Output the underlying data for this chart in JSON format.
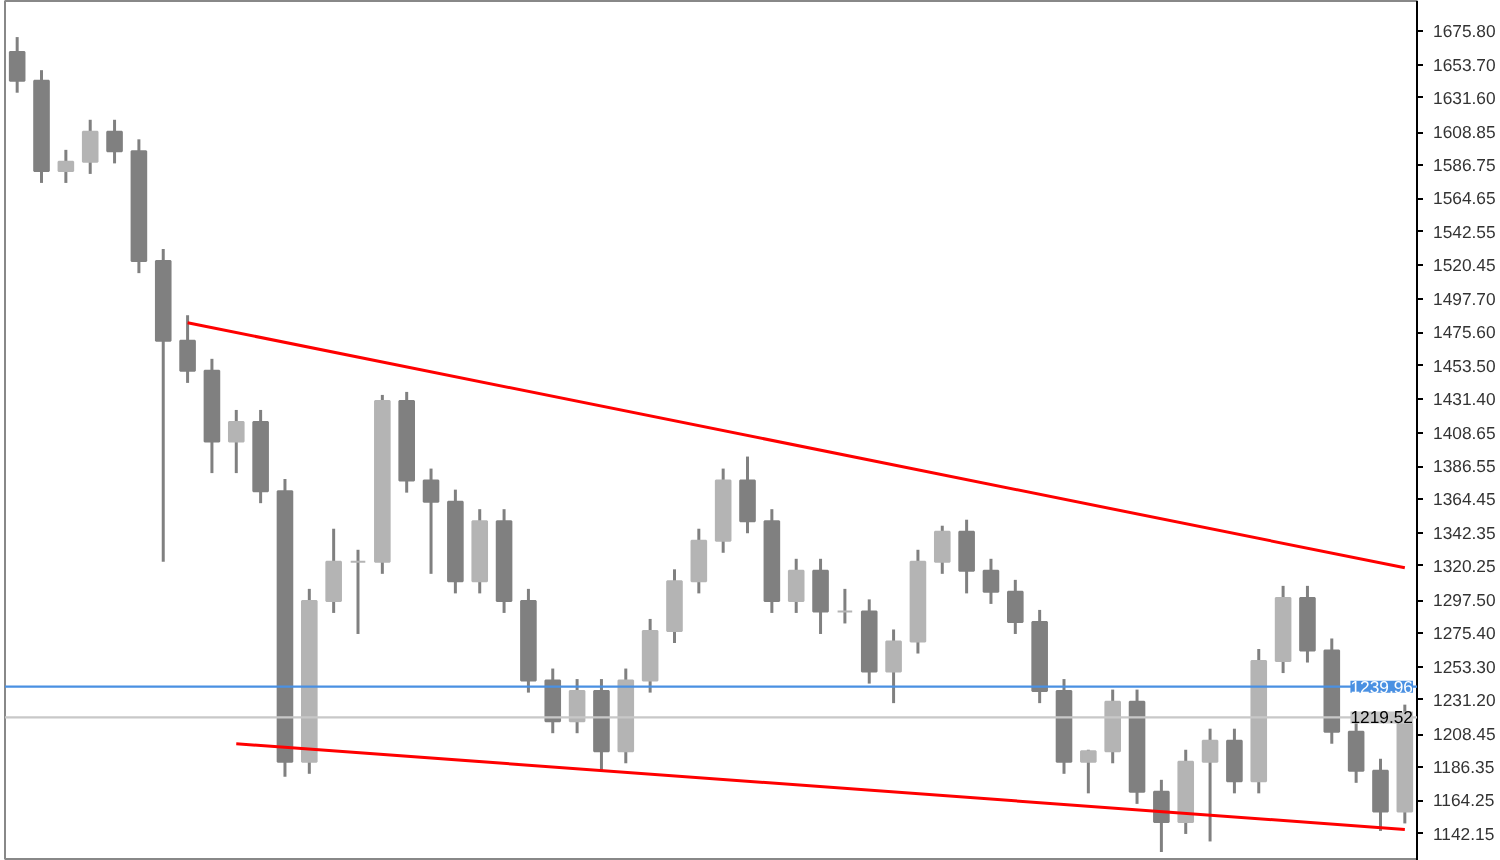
{
  "chart_data": {
    "type": "candlestick",
    "categories": [
      null,
      null,
      null,
      null,
      null,
      null,
      null,
      null,
      null,
      null,
      null,
      null,
      null,
      null,
      null,
      null,
      null,
      null,
      null,
      null,
      null,
      null,
      null,
      null,
      null,
      null,
      null,
      null,
      null,
      null,
      null,
      null,
      null,
      null,
      null,
      null,
      null,
      null,
      null,
      null,
      null,
      null,
      null,
      null,
      null,
      null,
      null,
      null,
      null,
      null,
      null,
      null,
      null,
      null,
      null,
      null,
      null,
      null
    ],
    "series": [
      {
        "color": "#808080",
        "colors": [
          "#808080",
          "#808080",
          "#b4b4b4",
          "#b4b4b4",
          "#808080",
          "#808080",
          "#808080",
          "#808080",
          "#808080",
          "#b4b4b4",
          "#808080",
          "#808080",
          "#b4b4b4",
          "#b4b4b4",
          "#b4b4b4",
          "#b4b4b4",
          "#808080",
          "#808080",
          "#808080",
          "#b4b4b4",
          "#808080",
          "#808080",
          "#808080",
          "#b4b4b4",
          "#808080",
          "#b4b4b4",
          "#b4b4b4",
          "#b4b4b4",
          "#b4b4b4",
          "#b4b4b4",
          "#808080",
          "#808080",
          "#b4b4b4",
          "#808080",
          "#b4b4b4",
          "#808080",
          "#b4b4b4",
          "#b4b4b4",
          "#b4b4b4",
          "#808080",
          "#808080",
          "#808080",
          "#808080",
          "#808080",
          "#b4b4b4",
          "#b4b4b4",
          "#808080",
          "#808080",
          "#b4b4b4",
          "#b4b4b4",
          "#808080",
          "#b4b4b4",
          "#b4b4b4",
          "#808080",
          "#808080",
          "#808080",
          "#808080",
          "#b4b4b4"
        ],
        "ohlc": [
          [
            1662,
            1672,
            1635,
            1643
          ],
          [
            1643,
            1650,
            1575,
            1583
          ],
          [
            1583,
            1597,
            1575,
            1589
          ],
          [
            1589,
            1617,
            1581,
            1609
          ],
          [
            1609,
            1617,
            1588,
            1596
          ],
          [
            1596,
            1604,
            1515,
            1523
          ],
          [
            1523,
            1531,
            1323,
            1470
          ],
          [
            1470,
            1487,
            1442,
            1450
          ],
          [
            1450,
            1458,
            1382,
            1403
          ],
          [
            1403,
            1424,
            1382,
            1416
          ],
          [
            1416,
            1424,
            1362,
            1370
          ],
          [
            1370,
            1378,
            1180,
            1190
          ],
          [
            1190,
            1305,
            1182,
            1297
          ],
          [
            1297,
            1345,
            1289,
            1323
          ],
          [
            1323,
            1331,
            1275,
            1323
          ],
          [
            1323,
            1434,
            1315,
            1430
          ],
          [
            1430,
            1436,
            1369,
            1377
          ],
          [
            1377,
            1385,
            1315,
            1363
          ],
          [
            1363,
            1371,
            1302,
            1310
          ],
          [
            1310,
            1358,
            1302,
            1350
          ],
          [
            1350,
            1358,
            1289,
            1297
          ],
          [
            1297,
            1305,
            1236,
            1244
          ],
          [
            1244,
            1252,
            1209,
            1217
          ],
          [
            1217,
            1245,
            1209,
            1237
          ],
          [
            1237,
            1245,
            1184,
            1197
          ],
          [
            1197,
            1252,
            1189,
            1244
          ],
          [
            1244,
            1285,
            1236,
            1277
          ],
          [
            1277,
            1318,
            1269,
            1310
          ],
          [
            1310,
            1345,
            1302,
            1337
          ],
          [
            1337,
            1385,
            1329,
            1377
          ],
          [
            1377,
            1393,
            1342,
            1350
          ],
          [
            1350,
            1358,
            1289,
            1297
          ],
          [
            1297,
            1325,
            1289,
            1317
          ],
          [
            1317,
            1325,
            1275,
            1290
          ],
          [
            1290,
            1305,
            1282,
            1290
          ],
          [
            1290,
            1298,
            1242,
            1250
          ],
          [
            1250,
            1278,
            1229,
            1270
          ],
          [
            1270,
            1331,
            1262,
            1323
          ],
          [
            1323,
            1347,
            1315,
            1343
          ],
          [
            1343,
            1351,
            1302,
            1317
          ],
          [
            1317,
            1325,
            1295,
            1303
          ],
          [
            1303,
            1311,
            1275,
            1283
          ],
          [
            1283,
            1291,
            1229,
            1237
          ],
          [
            1237,
            1245,
            1182,
            1190
          ],
          [
            1190,
            1198,
            1169,
            1197
          ],
          [
            1197,
            1238,
            1189,
            1230
          ],
          [
            1230,
            1238,
            1162,
            1170
          ],
          [
            1170,
            1178,
            1130,
            1150
          ],
          [
            1150,
            1198,
            1142,
            1190
          ],
          [
            1190,
            1212,
            1137,
            1204
          ],
          [
            1204,
            1212,
            1169,
            1177
          ],
          [
            1177,
            1265,
            1169,
            1257
          ],
          [
            1257,
            1307,
            1249,
            1299
          ],
          [
            1299,
            1307,
            1256,
            1264
          ],
          [
            1264,
            1272,
            1202,
            1210
          ],
          [
            1210,
            1218,
            1176,
            1184
          ],
          [
            1184,
            1192,
            1144,
            1157
          ],
          [
            1157,
            1228,
            1149,
            1219.52
          ]
        ]
      },
      {
        "type": "line",
        "color": "#ff0000",
        "values": [
          null,
          null,
          null,
          null,
          null,
          null,
          null,
          1482,
          null,
          null,
          null,
          null,
          null,
          null,
          null,
          null,
          null,
          null,
          null,
          null,
          null,
          null,
          null,
          null,
          null,
          null,
          null,
          null,
          null,
          null,
          null,
          null,
          null,
          null,
          null,
          null,
          null,
          null,
          null,
          null,
          null,
          null,
          null,
          null,
          null,
          null,
          null,
          null,
          null,
          null,
          null,
          null,
          null,
          null,
          null,
          null,
          null,
          1319
        ]
      },
      {
        "type": "line",
        "color": "#ff0000",
        "values": [
          null,
          null,
          null,
          null,
          null,
          null,
          null,
          null,
          null,
          1202,
          null,
          null,
          null,
          null,
          null,
          null,
          null,
          null,
          null,
          null,
          null,
          null,
          null,
          null,
          null,
          null,
          null,
          null,
          null,
          null,
          null,
          null,
          null,
          null,
          null,
          null,
          null,
          null,
          null,
          null,
          null,
          null,
          null,
          null,
          null,
          null,
          null,
          null,
          null,
          null,
          null,
          null,
          null,
          null,
          null,
          null,
          null,
          1145
        ]
      }
    ],
    "ylim": [
      1124,
      1696
    ],
    "yticks": [
      {
        "value": 1675.8,
        "label": "1675.80"
      },
      {
        "value": 1653.7,
        "label": "1653.70"
      },
      {
        "value": 1631.6,
        "label": "1631.60"
      },
      {
        "value": 1608.85,
        "label": "1608.85"
      },
      {
        "value": 1586.75,
        "label": "1586.75"
      },
      {
        "value": 1564.65,
        "label": "1564.65"
      },
      {
        "value": 1542.55,
        "label": "1542.55"
      },
      {
        "value": 1520.45,
        "label": "1520.45"
      },
      {
        "value": 1497.7,
        "label": "1497.70"
      },
      {
        "value": 1475.6,
        "label": "1475.60"
      },
      {
        "value": 1453.5,
        "label": "1453.50"
      },
      {
        "value": 1431.4,
        "label": "1431.40"
      },
      {
        "value": 1408.65,
        "label": "1408.65"
      },
      {
        "value": 1386.55,
        "label": "1386.55"
      },
      {
        "value": 1364.45,
        "label": "1364.45"
      },
      {
        "value": 1342.35,
        "label": "1342.35"
      },
      {
        "value": 1320.25,
        "label": "1320.25"
      },
      {
        "value": 1297.5,
        "label": "1297.50"
      },
      {
        "value": 1275.4,
        "label": "1275.40"
      },
      {
        "value": 1253.3,
        "label": "1253.30"
      },
      {
        "value": 1231.2,
        "label": "1231.20"
      },
      {
        "value": 1208.45,
        "label": "1208.45"
      },
      {
        "value": 1186.35,
        "label": "1186.35"
      },
      {
        "value": 1164.25,
        "label": "1164.25"
      },
      {
        "value": 1142.15,
        "label": "1142.15"
      }
    ],
    "ref_lines": [
      {
        "axis": "y",
        "value": 1239.96,
        "label": "1239.96",
        "color": "#4a90e2"
      },
      {
        "axis": "y",
        "value": 1219.52,
        "label": "1219.52",
        "color": "#c8c8c8"
      }
    ],
    "tick_labels": "y",
    "grid": false
  }
}
